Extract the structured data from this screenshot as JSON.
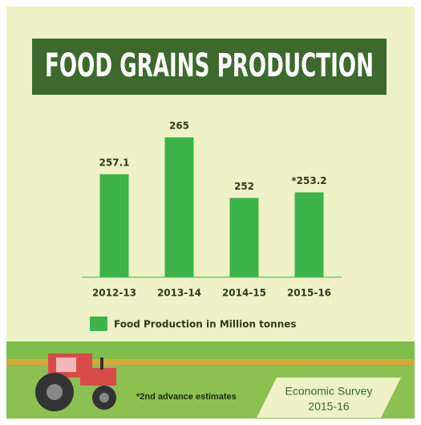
{
  "chart_data": {
    "type": "bar",
    "title": "FOOD GRAINS PRODUCTION",
    "categories": [
      "2012-13",
      "2013-14",
      "2014-15",
      "2015-16"
    ],
    "series": [
      {
        "name": "Food Production in Million tonnes",
        "color": "#3cb44a",
        "values": [
          257.1,
          265,
          252,
          253.2
        ],
        "value_labels": [
          "257.1",
          "265",
          "252",
          "*253.2"
        ]
      }
    ],
    "ylim": [
      235,
      270
    ],
    "footnote": "*2nd advance estimates",
    "source": [
      "Economic Survey",
      "2015-16"
    ]
  }
}
